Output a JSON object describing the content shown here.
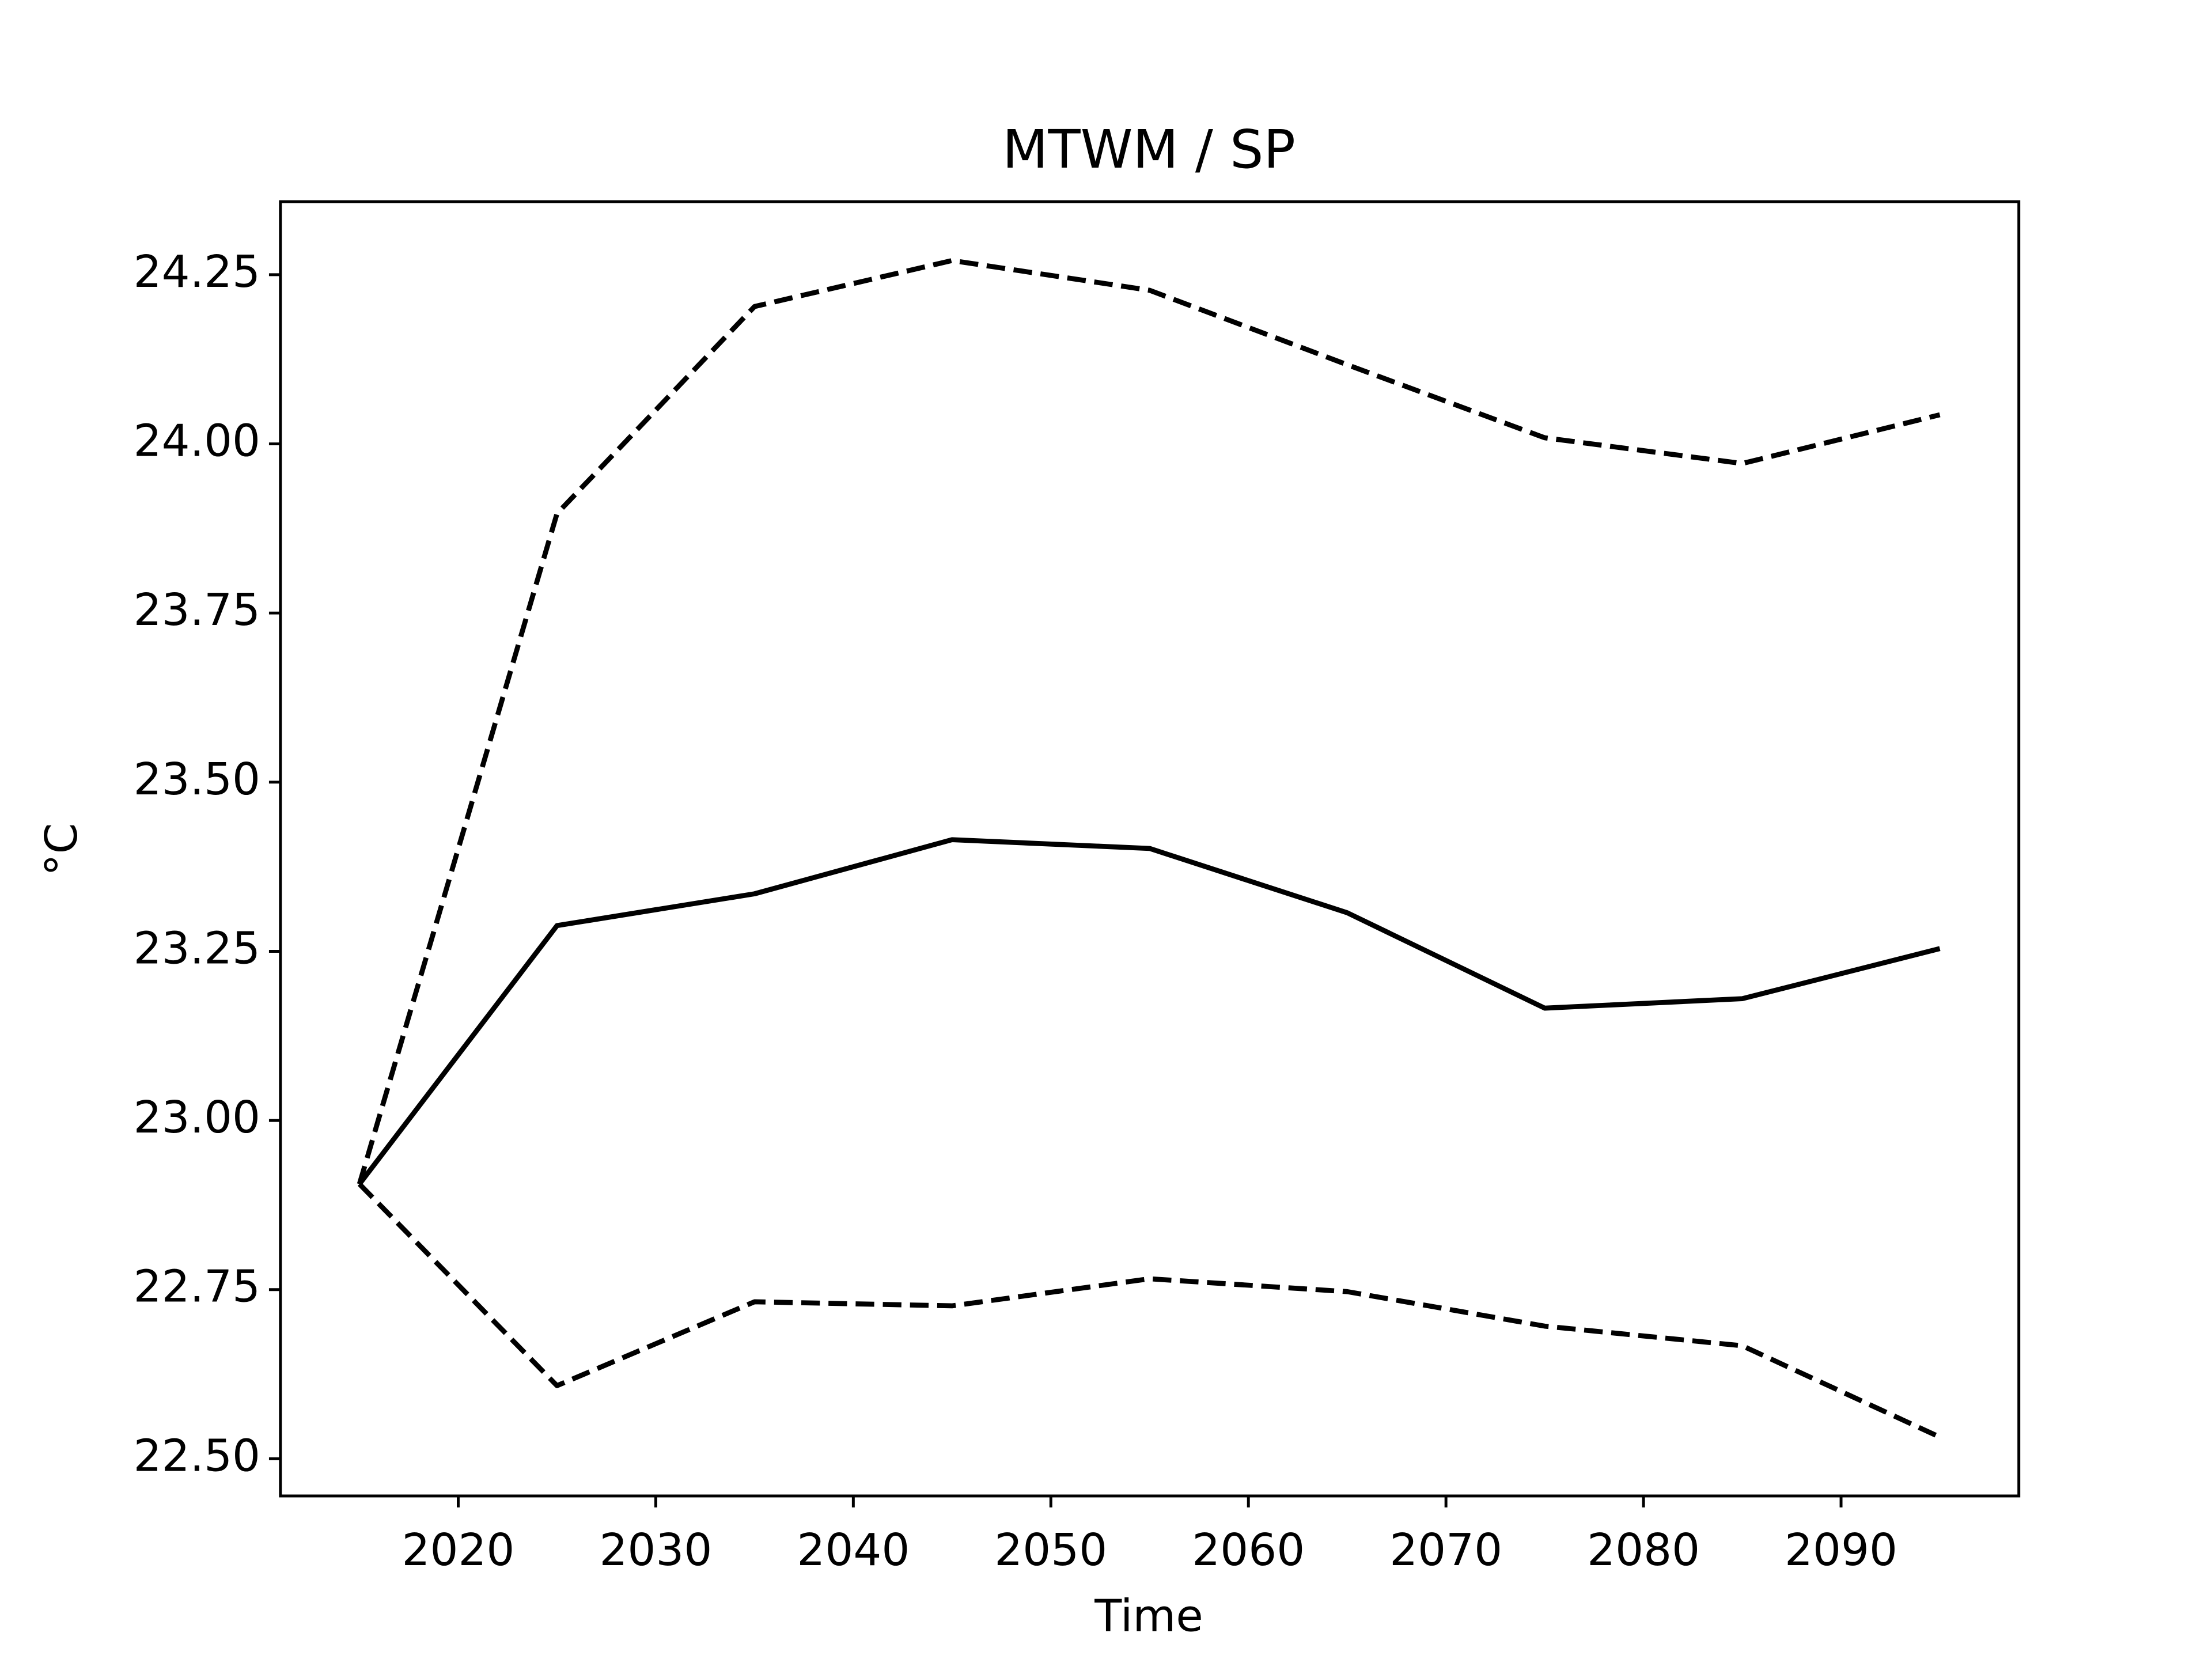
{
  "chart_data": {
    "type": "line",
    "title": "MTWM / SP",
    "xlabel": "Time",
    "ylabel": "°C",
    "x": [
      2015,
      2025,
      2035,
      2045,
      2055,
      2065,
      2075,
      2085,
      2095
    ],
    "series": [
      {
        "color": "#000000",
        "linestyle": "solid",
        "values": [
          22.906,
          23.288,
          23.335,
          23.415,
          23.402,
          23.307,
          23.166,
          23.18,
          23.254
        ]
      },
      {
        "color": "#000000",
        "linestyle": "dashed",
        "values": [
          22.906,
          23.897,
          24.203,
          24.271,
          24.227,
          24.117,
          24.009,
          23.971,
          24.043
        ]
      },
      {
        "color": "#000000",
        "linestyle": "dashed",
        "values": [
          22.906,
          22.608,
          22.732,
          22.726,
          22.766,
          22.747,
          22.696,
          22.667,
          22.532
        ]
      }
    ],
    "xlim": [
      2011,
      2099
    ],
    "xticks": [
      2020,
      2030,
      2040,
      2050,
      2060,
      2070,
      2080,
      2090
    ],
    "ylim": [
      22.445,
      24.358
    ],
    "yticks": [
      {
        "value": 22.5,
        "label": "22.50"
      },
      22.75,
      {
        "value": 23,
        "label": "23.00"
      },
      23.25,
      {
        "value": 23.5,
        "label": "23.50"
      },
      23.75,
      {
        "value": 24,
        "label": "24.00"
      },
      24.25
    ],
    "grid": false
  }
}
